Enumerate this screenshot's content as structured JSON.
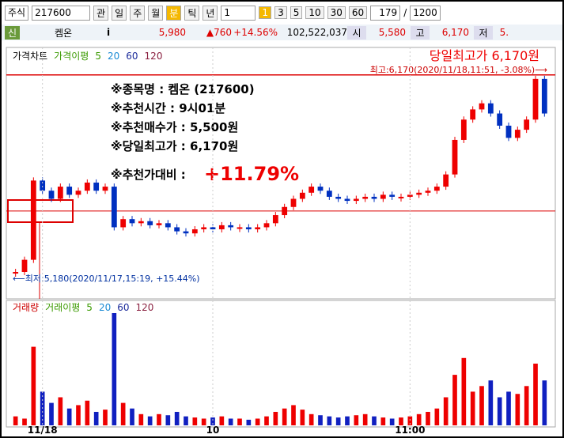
{
  "toolbar": {
    "market": "주식",
    "code": "217600",
    "link": "관",
    "periods": [
      "일",
      "주",
      "월",
      "분",
      "틱",
      "년"
    ],
    "interval": "1",
    "badge": "1",
    "minutes": [
      "3",
      "5",
      "10",
      "30",
      "60"
    ],
    "count": "179",
    "slash": "/",
    "total": "1200"
  },
  "quote": {
    "tag": "신",
    "name": "켐온",
    "info": "i",
    "price": "5,980",
    "change": "▲760",
    "pct": "+14.56%",
    "volume": "102,522,037",
    "open_label": "시",
    "open": "5,580",
    "high_label": "고",
    "high": "6,170",
    "low_label": "저",
    "low": "5."
  },
  "annotations": {
    "name": "※종목명 : 켐온 (217600)",
    "time": "※추천시간 : 9시01분",
    "buy": "※추천매수가 : 5,500원",
    "high": "※당일최고가 : 6,170원",
    "ratio_label": "※추천가대비 :",
    "ratio": "+11.79%",
    "top_title": "당일최고가 6,170원",
    "max_note": "최고:6,170(2020/11/18,11:51, -3.08%)⟶",
    "min_note": "⟵최저:5,180(2020/11/17,15:19, +15.44%)"
  },
  "chart_data": [
    {
      "type": "candle",
      "legend": [
        "가격차트",
        "가격이평",
        "5",
        "20",
        "60",
        "120"
      ],
      "categories": [
        null,
        null,
        null,
        "11/18",
        null,
        null,
        null,
        null,
        null,
        null,
        null,
        null,
        null,
        null,
        null,
        null,
        null,
        null,
        null,
        null,
        null,
        null,
        "10",
        null,
        null,
        null,
        null,
        null,
        null,
        null,
        null,
        null,
        null,
        null,
        null,
        null,
        null,
        null,
        null,
        null,
        null,
        null,
        null,
        null,
        "11:00",
        null,
        null,
        null,
        null,
        null,
        null,
        null,
        null,
        null,
        null,
        null,
        null,
        null,
        null,
        null
      ],
      "values": [
        5200,
        5260,
        5650,
        5600,
        5560,
        5620,
        5580,
        5600,
        5640,
        5600,
        5620,
        5420,
        5460,
        5440,
        5450,
        5430,
        5440,
        5420,
        5400,
        5390,
        5410,
        5420,
        5410,
        5430,
        5420,
        5420,
        5410,
        5420,
        5440,
        5480,
        5520,
        5560,
        5590,
        5620,
        5600,
        5570,
        5560,
        5550,
        5560,
        5570,
        5560,
        5580,
        5570,
        5570,
        5580,
        5590,
        5600,
        5620,
        5680,
        5850,
        5950,
        6000,
        6030,
        5980,
        5920,
        5860,
        5900,
        5950,
        6150,
        5980
      ],
      "reference_lines": [
        6170,
        5500
      ],
      "ylim": [
        5130,
        6200
      ]
    },
    {
      "type": "volume",
      "legend": [
        "거래량",
        "거래이평",
        "5",
        "20",
        "60",
        "120"
      ],
      "values": [
        8,
        6,
        70,
        30,
        20,
        25,
        15,
        18,
        22,
        12,
        14,
        100,
        20,
        15,
        10,
        8,
        10,
        9,
        12,
        8,
        7,
        6,
        7,
        8,
        6,
        6,
        5,
        6,
        8,
        12,
        15,
        18,
        14,
        10,
        9,
        8,
        7,
        8,
        9,
        10,
        8,
        7,
        6,
        7,
        8,
        10,
        12,
        15,
        25,
        45,
        60,
        30,
        35,
        40,
        25,
        30,
        28,
        35,
        55,
        40
      ],
      "ylim": [
        0,
        100
      ]
    }
  ]
}
